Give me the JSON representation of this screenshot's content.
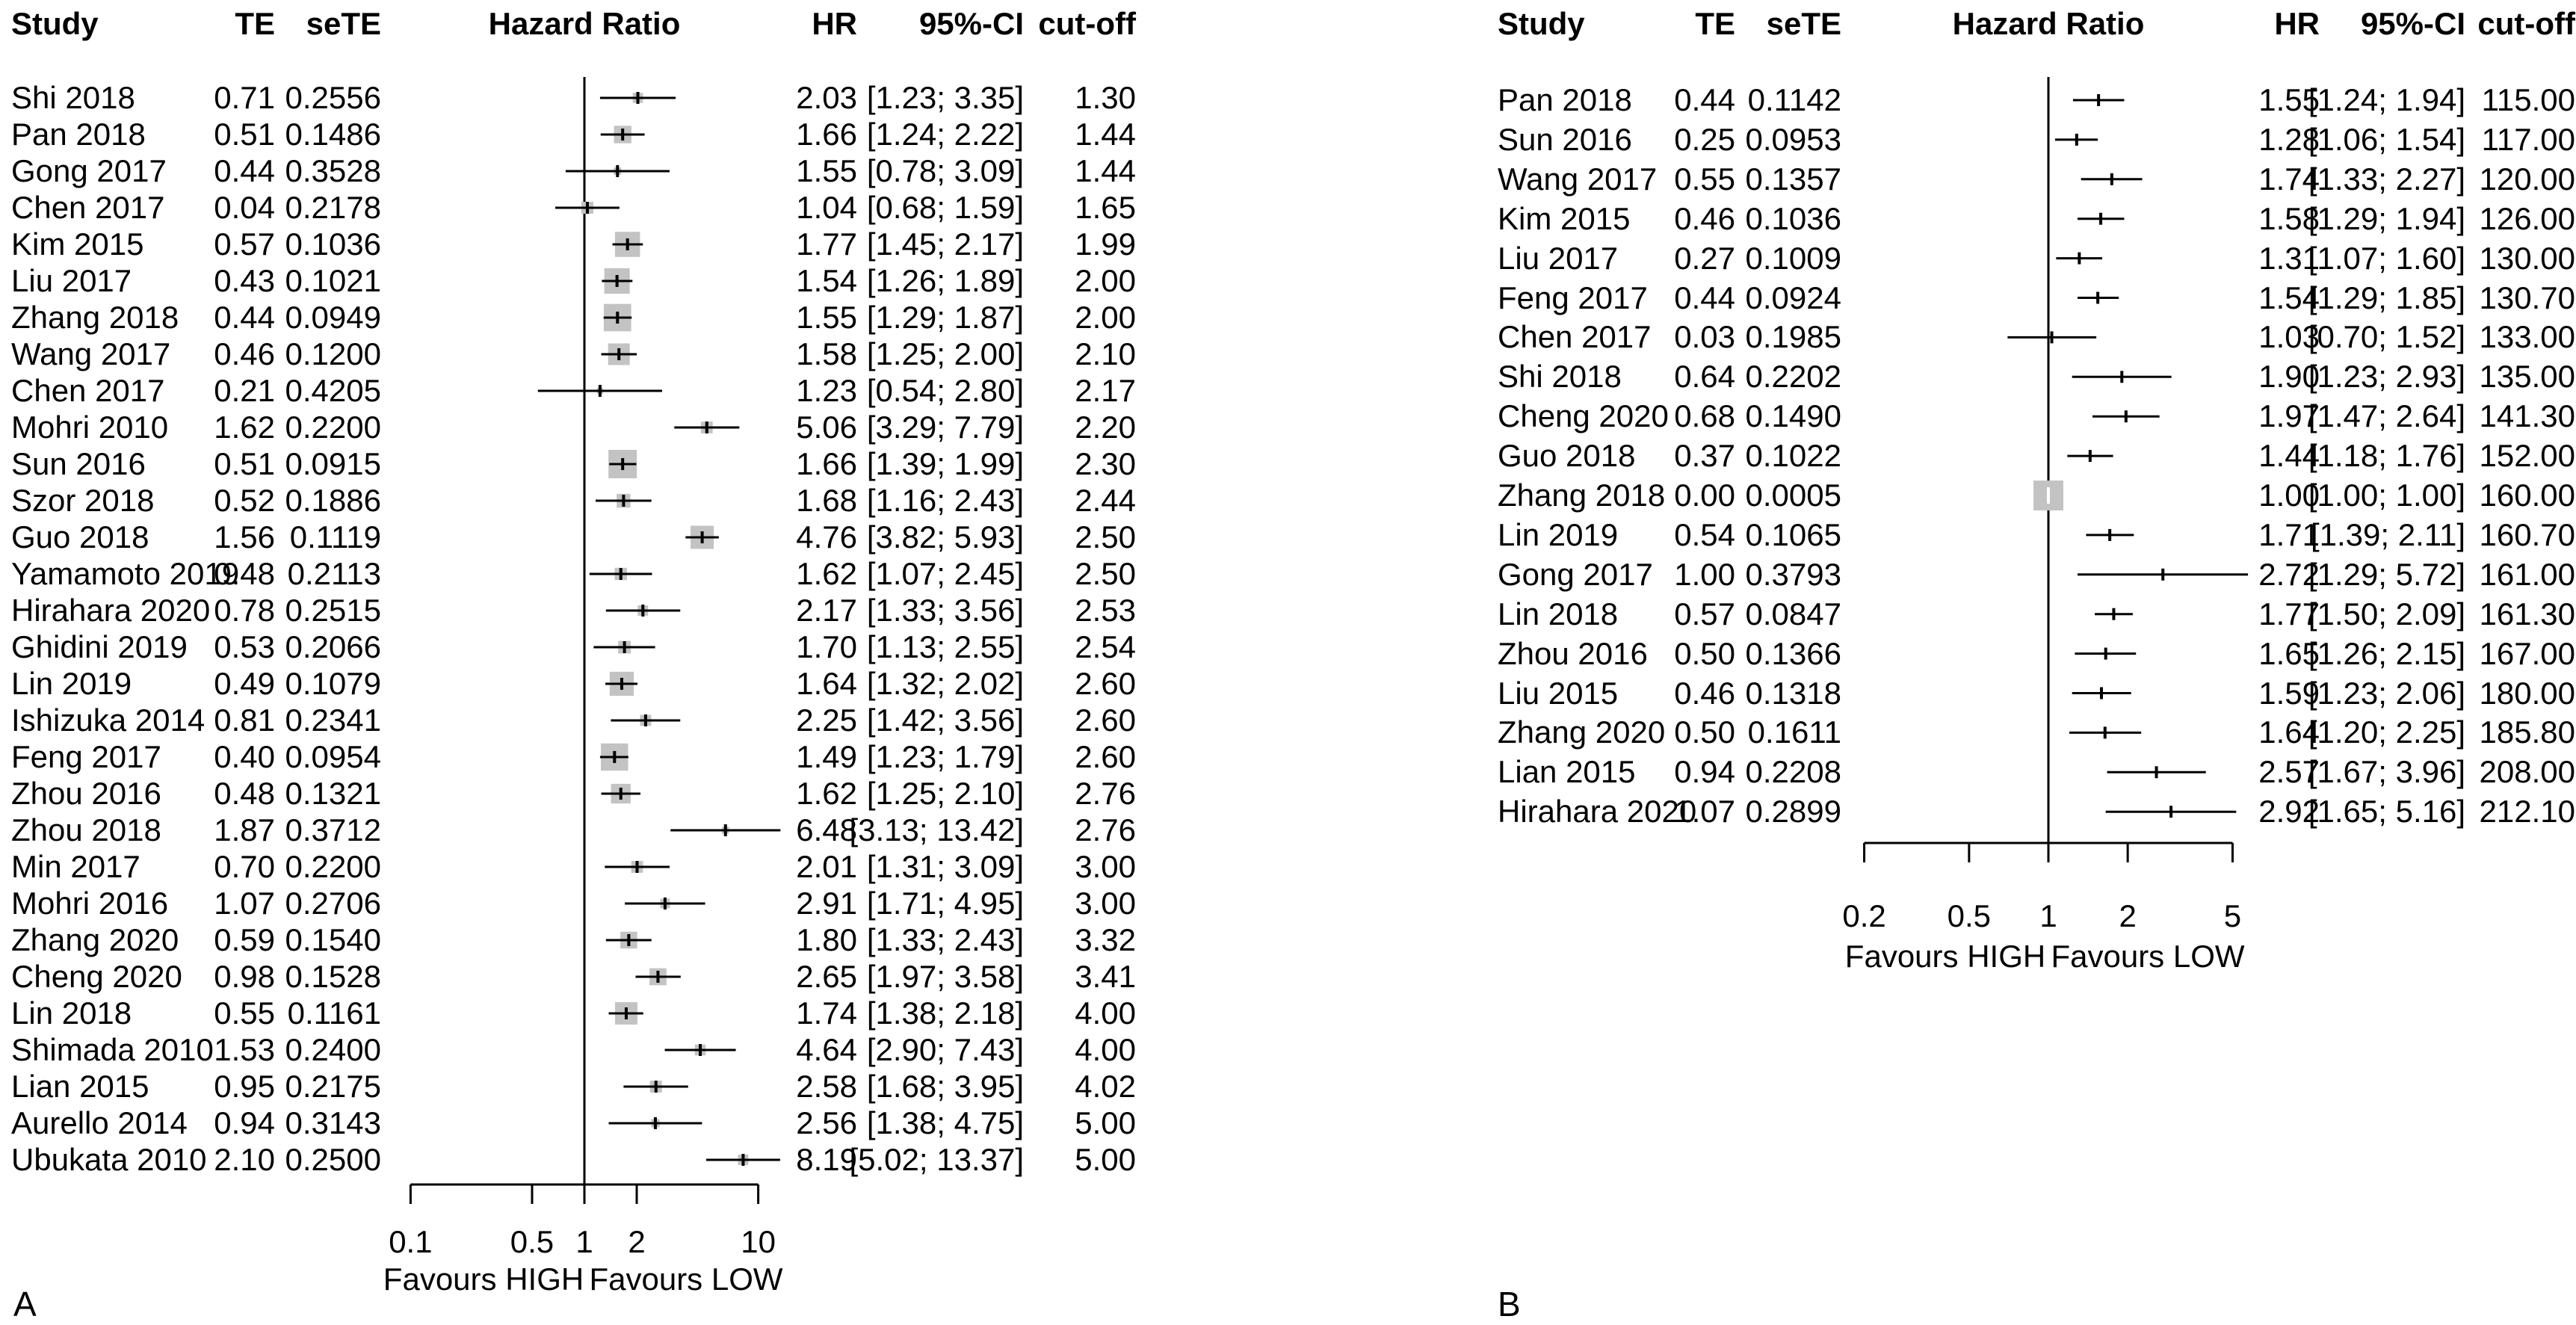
{
  "colors": {
    "background": "#ffffff",
    "text": "#000000",
    "line": "#000000",
    "marker_square": "#c3c3c3",
    "zero_width_ci_tick": "#ffffff"
  },
  "panels": [
    {
      "label": "A",
      "columns": {
        "study": "Study",
        "te": "TE",
        "sete": "seTE",
        "plot": "Hazard Ratio",
        "hr": "HR",
        "ci": "95%-CI",
        "cutoff": "cut-off"
      },
      "axis": {
        "ticks": [
          "0.1",
          "0.5",
          "1",
          "2",
          "10"
        ],
        "favours_high": "Favours HIGH",
        "favours_low": "Favours LOW"
      }
    },
    {
      "label": "B",
      "columns": {
        "study": "Study",
        "te": "TE",
        "sete": "seTE",
        "plot": "Hazard Ratio",
        "hr": "HR",
        "ci": "95%-CI",
        "cutoff": "cut-off"
      },
      "axis": {
        "ticks": [
          "0.2",
          "0.5",
          "1",
          "2",
          "5"
        ],
        "favours_high": "Favours HIGH",
        "favours_low": "Favours LOW"
      }
    }
  ],
  "chart_data": [
    {
      "type": "scatter",
      "subtype": "forest-plot",
      "panel": "A",
      "title": "Hazard Ratio",
      "xscale": "log",
      "xticks": [
        0.1,
        0.5,
        1,
        2,
        10
      ],
      "ref_line": 1,
      "legend_left": "Favours HIGH",
      "legend_right": "Favours LOW",
      "columns": [
        "Study",
        "TE",
        "seTE",
        "HR",
        "95%-CI",
        "cut-off"
      ],
      "rows": [
        {
          "study": "Shi 2018",
          "te": "0.71",
          "sete": "0.2556",
          "hr": 2.03,
          "lo": 1.23,
          "hi": 3.35,
          "cutoff": "1.30"
        },
        {
          "study": "Pan 2018",
          "te": "0.51",
          "sete": "0.1486",
          "hr": 1.66,
          "lo": 1.24,
          "hi": 2.22,
          "cutoff": "1.44"
        },
        {
          "study": "Gong 2017",
          "te": "0.44",
          "sete": "0.3528",
          "hr": 1.55,
          "lo": 0.78,
          "hi": 3.09,
          "cutoff": "1.44"
        },
        {
          "study": "Chen 2017",
          "te": "0.04",
          "sete": "0.2178",
          "hr": 1.04,
          "lo": 0.68,
          "hi": 1.59,
          "cutoff": "1.65"
        },
        {
          "study": "Kim 2015",
          "te": "0.57",
          "sete": "0.1036",
          "hr": 1.77,
          "lo": 1.45,
          "hi": 2.17,
          "cutoff": "1.99"
        },
        {
          "study": "Liu 2017",
          "te": "0.43",
          "sete": "0.1021",
          "hr": 1.54,
          "lo": 1.26,
          "hi": 1.89,
          "cutoff": "2.00"
        },
        {
          "study": "Zhang 2018",
          "te": "0.44",
          "sete": "0.0949",
          "hr": 1.55,
          "lo": 1.29,
          "hi": 1.87,
          "cutoff": "2.00"
        },
        {
          "study": "Wang 2017",
          "te": "0.46",
          "sete": "0.1200",
          "hr": 1.58,
          "lo": 1.25,
          "hi": 2.0,
          "cutoff": "2.10"
        },
        {
          "study": "Chen 2017",
          "te": "0.21",
          "sete": "0.4205",
          "hr": 1.23,
          "lo": 0.54,
          "hi": 2.8,
          "cutoff": "2.17"
        },
        {
          "study": "Mohri 2010",
          "te": "1.62",
          "sete": "0.2200",
          "hr": 5.06,
          "lo": 3.29,
          "hi": 7.79,
          "cutoff": "2.20"
        },
        {
          "study": "Sun 2016",
          "te": "0.51",
          "sete": "0.0915",
          "hr": 1.66,
          "lo": 1.39,
          "hi": 1.99,
          "cutoff": "2.30"
        },
        {
          "study": "Szor 2018",
          "te": "0.52",
          "sete": "0.1886",
          "hr": 1.68,
          "lo": 1.16,
          "hi": 2.43,
          "cutoff": "2.44"
        },
        {
          "study": "Guo 2018",
          "te": "1.56",
          "sete": "0.1119",
          "hr": 4.76,
          "lo": 3.82,
          "hi": 5.93,
          "cutoff": "2.50"
        },
        {
          "study": "Yamamoto 2019",
          "te": "0.48",
          "sete": "0.2113",
          "hr": 1.62,
          "lo": 1.07,
          "hi": 2.45,
          "cutoff": "2.50"
        },
        {
          "study": "Hirahara 2020",
          "te": "0.78",
          "sete": "0.2515",
          "hr": 2.17,
          "lo": 1.33,
          "hi": 3.56,
          "cutoff": "2.53"
        },
        {
          "study": "Ghidini 2019",
          "te": "0.53",
          "sete": "0.2066",
          "hr": 1.7,
          "lo": 1.13,
          "hi": 2.55,
          "cutoff": "2.54"
        },
        {
          "study": "Lin 2019",
          "te": "0.49",
          "sete": "0.1079",
          "hr": 1.64,
          "lo": 1.32,
          "hi": 2.02,
          "cutoff": "2.60"
        },
        {
          "study": "Ishizuka 2014",
          "te": "0.81",
          "sete": "0.2341",
          "hr": 2.25,
          "lo": 1.42,
          "hi": 3.56,
          "cutoff": "2.60"
        },
        {
          "study": "Feng 2017",
          "te": "0.40",
          "sete": "0.0954",
          "hr": 1.49,
          "lo": 1.23,
          "hi": 1.79,
          "cutoff": "2.60"
        },
        {
          "study": "Zhou 2016",
          "te": "0.48",
          "sete": "0.1321",
          "hr": 1.62,
          "lo": 1.25,
          "hi": 2.1,
          "cutoff": "2.76"
        },
        {
          "study": "Zhou 2018",
          "te": "1.87",
          "sete": "0.3712",
          "hr": 6.48,
          "lo": 3.13,
          "hi": 13.42,
          "cutoff": "2.76"
        },
        {
          "study": "Min 2017",
          "te": "0.70",
          "sete": "0.2200",
          "hr": 2.01,
          "lo": 1.31,
          "hi": 3.09,
          "cutoff": "3.00"
        },
        {
          "study": "Mohri 2016",
          "te": "1.07",
          "sete": "0.2706",
          "hr": 2.91,
          "lo": 1.71,
          "hi": 4.95,
          "cutoff": "3.00"
        },
        {
          "study": "Zhang 2020",
          "te": "0.59",
          "sete": "0.1540",
          "hr": 1.8,
          "lo": 1.33,
          "hi": 2.43,
          "cutoff": "3.32"
        },
        {
          "study": "Cheng 2020",
          "te": "0.98",
          "sete": "0.1528",
          "hr": 2.65,
          "lo": 1.97,
          "hi": 3.58,
          "cutoff": "3.41"
        },
        {
          "study": "Lin 2018",
          "te": "0.55",
          "sete": "0.1161",
          "hr": 1.74,
          "lo": 1.38,
          "hi": 2.18,
          "cutoff": "4.00"
        },
        {
          "study": "Shimada 2010",
          "te": "1.53",
          "sete": "0.2400",
          "hr": 4.64,
          "lo": 2.9,
          "hi": 7.43,
          "cutoff": "4.00"
        },
        {
          "study": "Lian 2015",
          "te": "0.95",
          "sete": "0.2175",
          "hr": 2.58,
          "lo": 1.68,
          "hi": 3.95,
          "cutoff": "4.02"
        },
        {
          "study": "Aurello 2014",
          "te": "0.94",
          "sete": "0.3143",
          "hr": 2.56,
          "lo": 1.38,
          "hi": 4.75,
          "cutoff": "5.00"
        },
        {
          "study": "Ubukata 2010",
          "te": "2.10",
          "sete": "0.2500",
          "hr": 8.19,
          "lo": 5.02,
          "hi": 13.37,
          "cutoff": "5.00"
        }
      ]
    },
    {
      "type": "scatter",
      "subtype": "forest-plot",
      "panel": "B",
      "title": "Hazard Ratio",
      "xscale": "log",
      "xticks": [
        0.2,
        0.5,
        1,
        2,
        5
      ],
      "ref_line": 1,
      "legend_left": "Favours HIGH",
      "legend_right": "Favours LOW",
      "columns": [
        "Study",
        "TE",
        "seTE",
        "HR",
        "95%-CI",
        "cut-off"
      ],
      "rows": [
        {
          "study": "Pan 2018",
          "te": "0.44",
          "sete": "0.1142",
          "hr": 1.55,
          "lo": 1.24,
          "hi": 1.94,
          "cutoff": "115.00"
        },
        {
          "study": "Sun 2016",
          "te": "0.25",
          "sete": "0.0953",
          "hr": 1.28,
          "lo": 1.06,
          "hi": 1.54,
          "cutoff": "117.00"
        },
        {
          "study": "Wang 2017",
          "te": "0.55",
          "sete": "0.1357",
          "hr": 1.74,
          "lo": 1.33,
          "hi": 2.27,
          "cutoff": "120.00"
        },
        {
          "study": "Kim 2015",
          "te": "0.46",
          "sete": "0.1036",
          "hr": 1.58,
          "lo": 1.29,
          "hi": 1.94,
          "cutoff": "126.00"
        },
        {
          "study": "Liu 2017",
          "te": "0.27",
          "sete": "0.1009",
          "hr": 1.31,
          "lo": 1.07,
          "hi": 1.6,
          "cutoff": "130.00"
        },
        {
          "study": "Feng 2017",
          "te": "0.44",
          "sete": "0.0924",
          "hr": 1.54,
          "lo": 1.29,
          "hi": 1.85,
          "cutoff": "130.70"
        },
        {
          "study": "Chen 2017",
          "te": "0.03",
          "sete": "0.1985",
          "hr": 1.03,
          "lo": 0.7,
          "hi": 1.52,
          "cutoff": "133.00"
        },
        {
          "study": "Shi 2018",
          "te": "0.64",
          "sete": "0.2202",
          "hr": 1.9,
          "lo": 1.23,
          "hi": 2.93,
          "cutoff": "135.00"
        },
        {
          "study": "Cheng 2020",
          "te": "0.68",
          "sete": "0.1490",
          "hr": 1.97,
          "lo": 1.47,
          "hi": 2.64,
          "cutoff": "141.30"
        },
        {
          "study": "Guo 2018",
          "te": "0.37",
          "sete": "0.1022",
          "hr": 1.44,
          "lo": 1.18,
          "hi": 1.76,
          "cutoff": "152.00"
        },
        {
          "study": "Zhang 2018",
          "te": "0.00",
          "sete": "0.0005",
          "hr": 1.0,
          "lo": 1.0,
          "hi": 1.0,
          "cutoff": "160.00"
        },
        {
          "study": "Lin 2019",
          "te": "0.54",
          "sete": "0.1065",
          "hr": 1.71,
          "lo": 1.39,
          "hi": 2.11,
          "cutoff": "160.70"
        },
        {
          "study": "Gong 2017",
          "te": "1.00",
          "sete": "0.3793",
          "hr": 2.72,
          "lo": 1.29,
          "hi": 5.72,
          "cutoff": "161.00"
        },
        {
          "study": "Lin 2018",
          "te": "0.57",
          "sete": "0.0847",
          "hr": 1.77,
          "lo": 1.5,
          "hi": 2.09,
          "cutoff": "161.30"
        },
        {
          "study": "Zhou 2016",
          "te": "0.50",
          "sete": "0.1366",
          "hr": 1.65,
          "lo": 1.26,
          "hi": 2.15,
          "cutoff": "167.00"
        },
        {
          "study": "Liu 2015",
          "te": "0.46",
          "sete": "0.1318",
          "hr": 1.59,
          "lo": 1.23,
          "hi": 2.06,
          "cutoff": "180.00"
        },
        {
          "study": "Zhang 2020",
          "te": "0.50",
          "sete": "0.1611",
          "hr": 1.64,
          "lo": 1.2,
          "hi": 2.25,
          "cutoff": "185.80"
        },
        {
          "study": "Lian 2015",
          "te": "0.94",
          "sete": "0.2208",
          "hr": 2.57,
          "lo": 1.67,
          "hi": 3.96,
          "cutoff": "208.00"
        },
        {
          "study": "Hirahara 2020",
          "te": "1.07",
          "sete": "0.2899",
          "hr": 2.92,
          "lo": 1.65,
          "hi": 5.16,
          "cutoff": "212.10"
        }
      ]
    }
  ]
}
